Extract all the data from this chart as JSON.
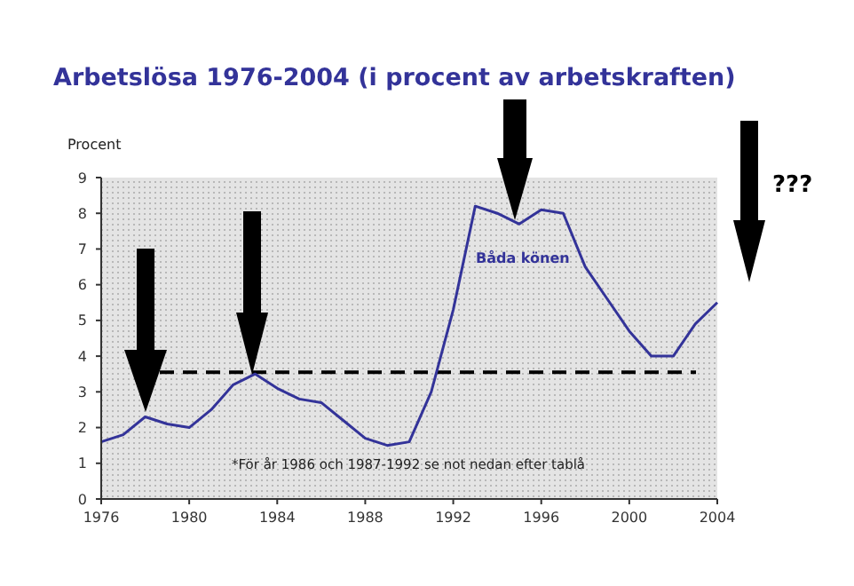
{
  "chart_data": {
    "type": "line",
    "title": "Arbetslösa 1976-2004 (i procent av arbetskraften)",
    "ylabel": "Procent",
    "x": [
      1976,
      1977,
      1978,
      1979,
      1980,
      1981,
      1982,
      1983,
      1984,
      1985,
      1986,
      1987,
      1988,
      1989,
      1990,
      1991,
      1992,
      1993,
      1994,
      1995,
      1996,
      1997,
      1998,
      1999,
      2000,
      2001,
      2002,
      2003,
      2004
    ],
    "series": [
      {
        "name": "Båda könen",
        "color": "#333399",
        "values": [
          1.6,
          1.8,
          2.3,
          2.1,
          2.0,
          2.5,
          3.2,
          3.5,
          3.1,
          2.8,
          2.7,
          2.2,
          1.7,
          1.5,
          1.6,
          3.0,
          5.3,
          8.2,
          8.0,
          7.7,
          8.1,
          8.0,
          6.5,
          5.6,
          4.7,
          4.0,
          4.0,
          4.9,
          5.5
        ]
      }
    ],
    "xlim": [
      1976,
      2004
    ],
    "xticks": [
      1976,
      1980,
      1984,
      1988,
      1992,
      1996,
      2000,
      2004
    ],
    "ylim": [
      0,
      9
    ],
    "yticks": [
      0,
      1,
      2,
      3,
      4,
      5,
      6,
      7,
      8,
      9
    ],
    "ref_lines": [
      {
        "axis": "y",
        "value": 3.55,
        "color": "#000000",
        "line_style": "dashed"
      }
    ],
    "annotations": [
      "*För år 1986 och 1987-1992 se not nedan efter tablå",
      "???"
    ],
    "grid": false,
    "marker": "none",
    "line_style": "solid"
  }
}
